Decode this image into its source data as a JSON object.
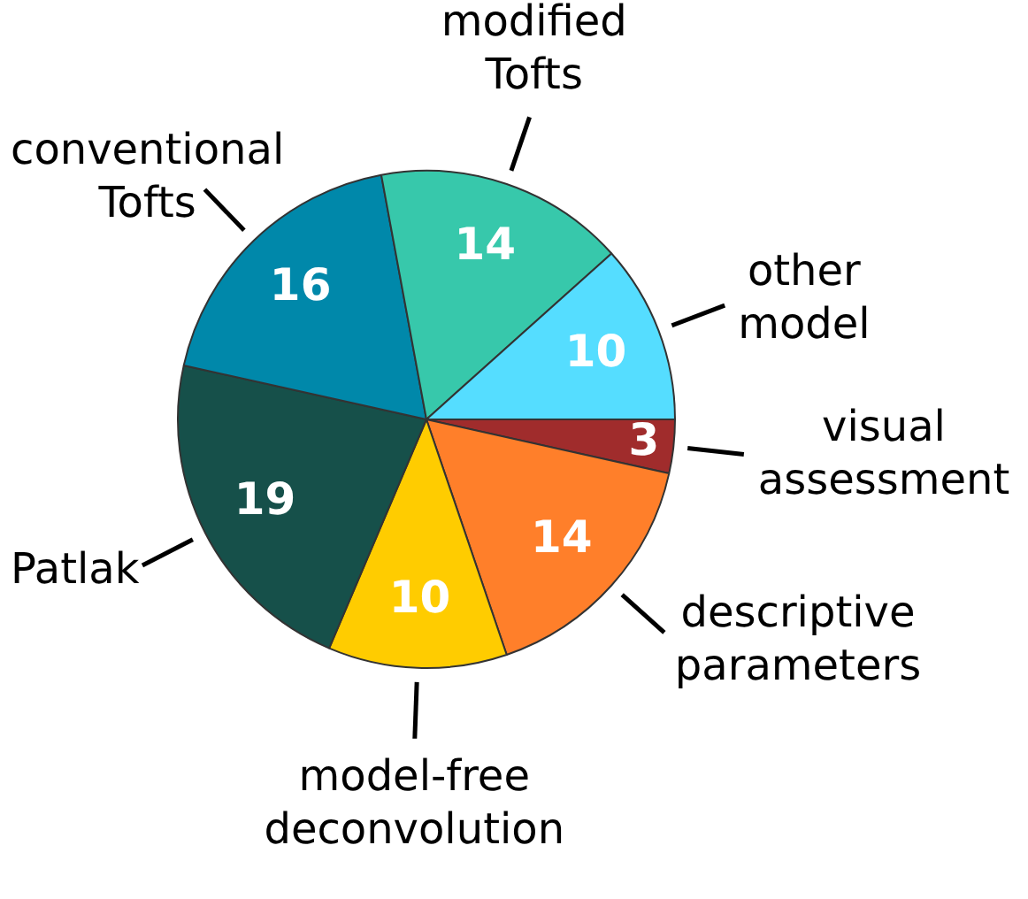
{
  "chart_data": {
    "type": "pie",
    "categories": [
      "visual assessment",
      "descriptive parameters",
      "model-free deconvolution",
      "Patlak",
      "conventional Tofts",
      "modified Tofts",
      "other model"
    ],
    "values": [
      3,
      14,
      10,
      19,
      16,
      14,
      10
    ],
    "colors": [
      "#a02c2c",
      "#ff7f2a",
      "#ffcc00",
      "#16504a",
      "#0088aa",
      "#37c8ab",
      "#55ddff"
    ],
    "data_labels": true
  }
}
